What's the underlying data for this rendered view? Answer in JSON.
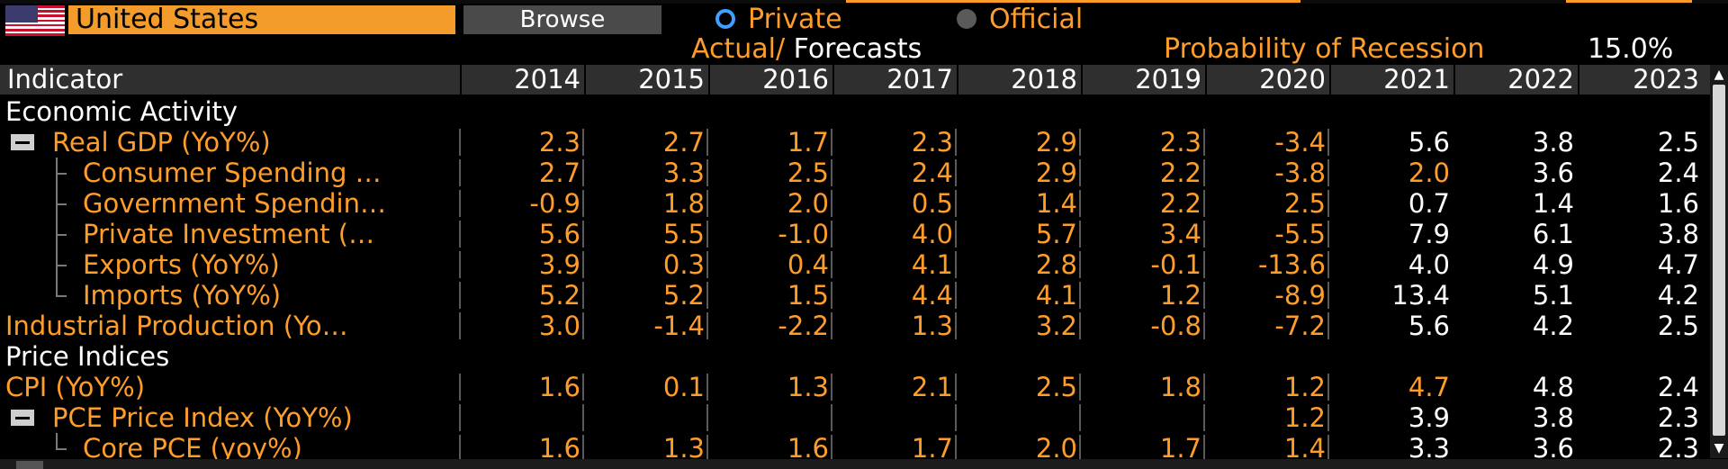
{
  "header": {
    "country": "United States",
    "browse_label": "Browse",
    "radio_private": "Private",
    "radio_official": "Official",
    "actual_label": "Actual",
    "slash": "/",
    "forecasts_label": "Forecasts",
    "prob_label": "Probability of Recession",
    "prob_value": "15.0%"
  },
  "table": {
    "indicator_header": "Indicator",
    "years": [
      "2014",
      "2015",
      "2016",
      "2017",
      "2018",
      "2019",
      "2020",
      "2021",
      "2022",
      "2023"
    ],
    "rows": [
      {
        "type": "category",
        "label": "Economic Activity"
      },
      {
        "type": "item",
        "label": "Real GDP (YoY%)",
        "values": [
          "2.3",
          "2.7",
          "1.7",
          "2.3",
          "2.9",
          "2.3",
          "-3.4",
          "5.6",
          "3.8",
          "2.5"
        ]
      },
      {
        "type": "child",
        "label": "Consumer Spending …",
        "values": [
          "2.7",
          "3.3",
          "2.5",
          "2.4",
          "2.9",
          "2.2",
          "-3.8",
          "2.0",
          "3.6",
          "2.4"
        ]
      },
      {
        "type": "child",
        "label": "Government Spendin…",
        "values": [
          "-0.9",
          "1.8",
          "2.0",
          "0.5",
          "1.4",
          "2.2",
          "2.5",
          "0.7",
          "1.4",
          "1.6"
        ]
      },
      {
        "type": "child",
        "label": "Private Investment (…",
        "values": [
          "5.6",
          "5.5",
          "-1.0",
          "4.0",
          "5.7",
          "3.4",
          "-5.5",
          "7.9",
          "6.1",
          "3.8"
        ]
      },
      {
        "type": "child",
        "label": "Exports (YoY%)",
        "values": [
          "3.9",
          "0.3",
          "0.4",
          "4.1",
          "2.8",
          "-0.1",
          "-13.6",
          "4.0",
          "4.9",
          "4.7"
        ]
      },
      {
        "type": "child",
        "label": "Imports (YoY%)",
        "values": [
          "5.2",
          "5.2",
          "1.5",
          "4.4",
          "4.1",
          "1.2",
          "-8.9",
          "13.4",
          "5.1",
          "4.2"
        ]
      },
      {
        "type": "item",
        "label": "Industrial Production (Yo…",
        "values": [
          "3.0",
          "-1.4",
          "-2.2",
          "1.3",
          "3.2",
          "-0.8",
          "-7.2",
          "5.6",
          "4.2",
          "2.5"
        ]
      },
      {
        "type": "category",
        "label": "Price Indices"
      },
      {
        "type": "item",
        "label": "CPI (YoY%)",
        "values": [
          "1.6",
          "0.1",
          "1.3",
          "2.1",
          "2.5",
          "1.8",
          "1.2",
          "4.7",
          "4.8",
          "2.4"
        ]
      },
      {
        "type": "item",
        "label": "PCE Price Index (YoY%)",
        "values": [
          "",
          "",
          "",
          "",
          "",
          "",
          "1.2",
          "3.9",
          "3.8",
          "2.3"
        ]
      },
      {
        "type": "child",
        "label": "Core PCE (yoy%)",
        "values": [
          "1.6",
          "1.3",
          "1.6",
          "1.7",
          "2.0",
          "1.7",
          "1.4",
          "3.3",
          "3.6",
          "2.3"
        ]
      }
    ]
  },
  "colors": {
    "accent": "#ff9d2a",
    "country_bg": "#f39c2b",
    "header_bg": "#2f2f2f",
    "selected_radio": "#3ea0ff"
  }
}
